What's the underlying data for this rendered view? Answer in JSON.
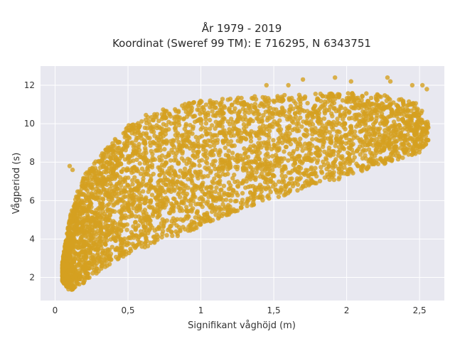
{
  "chart_data": {
    "type": "scatter",
    "title_line1": "År 1979 - 2019",
    "title_line2": "Koordinat (Sweref 99 TM): E 716295, N 6343751",
    "xlabel": "Signifikant våghöjd (m)",
    "ylabel": "Vågperiod (s)",
    "xlim": [
      -0.1,
      2.67
    ],
    "ylim": [
      0.8,
      13.0
    ],
    "x_ticks": [
      0,
      0.5,
      1,
      1.5,
      2,
      2.5
    ],
    "x_tick_labels": [
      "0",
      "0,5",
      "1",
      "1,5",
      "2",
      "2,5"
    ],
    "y_ticks": [
      2,
      4,
      6,
      8,
      10,
      12
    ],
    "y_tick_labels": [
      "2",
      "4",
      "6",
      "8",
      "10",
      "12"
    ],
    "grid": true,
    "point_color": "#D4A020",
    "background_color": "#E8E8F0",
    "series": [
      {
        "outline_upper": [
          [
            0.05,
            2.8
          ],
          [
            0.1,
            5.2
          ],
          [
            0.15,
            6.4
          ],
          [
            0.2,
            7.3
          ],
          [
            0.3,
            8.3
          ],
          [
            0.4,
            9.1
          ],
          [
            0.5,
            9.9
          ],
          [
            0.6,
            10.4
          ],
          [
            0.8,
            10.9
          ],
          [
            1.0,
            11.2
          ],
          [
            1.3,
            11.4
          ],
          [
            1.6,
            11.5
          ],
          [
            1.9,
            11.6
          ],
          [
            2.1,
            11.6
          ],
          [
            2.3,
            11.5
          ],
          [
            2.5,
            11.0
          ],
          [
            2.56,
            10.0
          ]
        ],
        "outline_lower": [
          [
            0.05,
            1.8
          ],
          [
            0.1,
            1.3
          ],
          [
            0.2,
            1.7
          ],
          [
            0.3,
            2.3
          ],
          [
            0.4,
            2.8
          ],
          [
            0.5,
            3.2
          ],
          [
            0.7,
            3.8
          ],
          [
            0.9,
            4.3
          ],
          [
            1.1,
            5.0
          ],
          [
            1.3,
            5.6
          ],
          [
            1.5,
            6.1
          ],
          [
            1.7,
            6.6
          ],
          [
            1.9,
            7.0
          ],
          [
            2.1,
            7.5
          ],
          [
            2.3,
            8.0
          ],
          [
            2.5,
            8.5
          ],
          [
            2.56,
            9.0
          ]
        ],
        "outliers": [
          [
            1.7,
            12.3
          ],
          [
            1.92,
            12.4
          ],
          [
            2.03,
            12.2
          ],
          [
            2.28,
            12.4
          ],
          [
            2.3,
            12.2
          ],
          [
            2.45,
            12.0
          ],
          [
            2.52,
            12.0
          ],
          [
            2.55,
            11.8
          ],
          [
            1.45,
            12.0
          ],
          [
            1.6,
            12.0
          ],
          [
            0.1,
            7.8
          ],
          [
            0.12,
            7.6
          ],
          [
            2.44,
            9.8
          ],
          [
            2.52,
            9.6
          ],
          [
            2.56,
            9.8
          ]
        ]
      }
    ]
  }
}
